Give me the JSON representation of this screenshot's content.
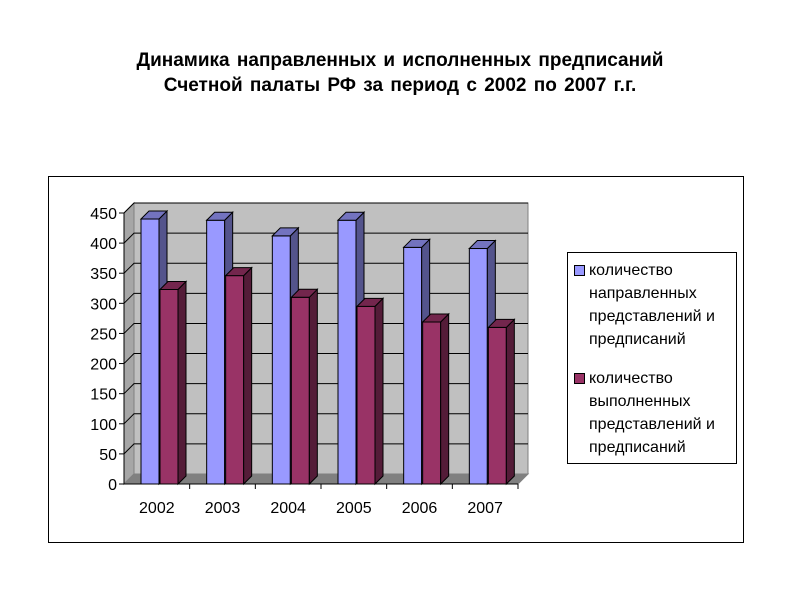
{
  "title": {
    "line1": "Динамика  направленных  и исполненных  предписаний",
    "line2": "Счетной палаты  РФ за период  с  2002 по  2007 г.г."
  },
  "chart_data": {
    "type": "bar",
    "categories": [
      "2002",
      "2003",
      "2004",
      "2005",
      "2006",
      "2007"
    ],
    "series": [
      {
        "name": "количество направленных представлений и предписаний",
        "values": [
          440,
          438,
          412,
          438,
          393,
          391
        ],
        "color": "#9999ff"
      },
      {
        "name": "количество выполненных представлений и предписаний",
        "values": [
          323,
          346,
          310,
          295,
          269,
          260
        ],
        "color": "#993366"
      }
    ],
    "ylim": [
      0,
      450
    ],
    "yticks": [
      "0",
      "50",
      "100",
      "150",
      "200",
      "250",
      "300",
      "350",
      "400",
      "450"
    ],
    "grid": true,
    "legend": "right",
    "style": "3d-clustered-column"
  },
  "legend_lines": [
    [
      "количество",
      "направленных",
      "представлений и",
      "предписаний"
    ],
    [
      "количество",
      "выполненных",
      "представлений и",
      "предписаний"
    ]
  ]
}
